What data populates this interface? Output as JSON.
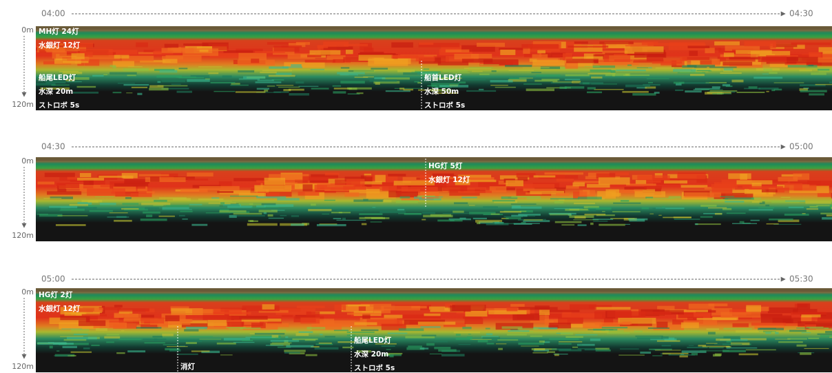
{
  "panels": [
    {
      "start": "04:00",
      "end": "04:30",
      "depth_top": "0m",
      "depth_bottom": "120m",
      "annotations": [
        {
          "lines": [
            "MH灯 24灯",
            "水銀灯 12灯"
          ]
        },
        {
          "lines": [
            "船尾LED灯",
            "水深 20m",
            "ストロボ 5s"
          ]
        },
        {
          "lines": [
            "船首LED灯",
            "水深 50m",
            "ストロボ 5s"
          ]
        }
      ]
    },
    {
      "start": "04:30",
      "end": "05:00",
      "depth_top": "0m",
      "depth_bottom": "120m",
      "annotations": [
        {
          "lines": [
            "HG灯 5灯",
            "水銀灯 12灯"
          ]
        }
      ]
    },
    {
      "start": "05:00",
      "end": "05:30",
      "depth_top": "0m",
      "depth_bottom": "120m",
      "annotations": [
        {
          "lines": [
            "HG灯 2灯",
            "水銀灯 12灯"
          ]
        },
        {
          "lines": [
            "消灯"
          ]
        },
        {
          "lines": [
            "船尾LED灯",
            "水深 20m",
            "ストロボ 5s"
          ]
        }
      ]
    }
  ]
}
